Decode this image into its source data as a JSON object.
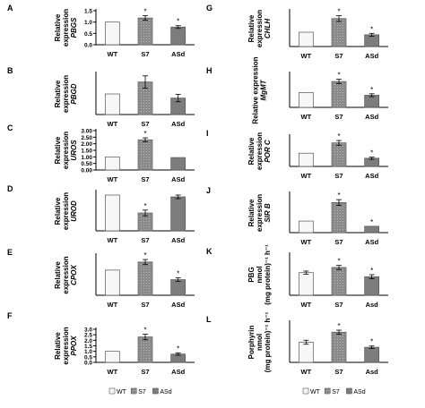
{
  "colors": {
    "WT": "#f7f7f7",
    "S7": "#8a8a8a",
    "ASd": "#7d7d7d",
    "axis": "#000000",
    "text": "#000000"
  },
  "legend_left": {
    "items": [
      "WT",
      "S7",
      "ASd"
    ]
  },
  "legend_right": {
    "items": [
      "WT",
      "S7",
      "ASd"
    ]
  },
  "chart_data": [
    {
      "type": "bar",
      "panel": "A",
      "ylabel_line1": "Relative",
      "ylabel_line2": "expression",
      "gene": "PBGS",
      "categories": [
        "WT",
        "S7",
        "ASd"
      ],
      "values": [
        1.0,
        1.18,
        0.78
      ],
      "errors": [
        0.0,
        0.1,
        0.06
      ],
      "significant": [
        false,
        true,
        true
      ],
      "ylim": [
        0,
        1.5
      ],
      "ticks": [
        "0.0",
        "0.5",
        "1.0",
        "1.5"
      ],
      "tick_values": [
        0,
        0.5,
        1.0,
        1.5
      ]
    },
    {
      "type": "bar",
      "panel": "B",
      "ylabel_line1": "Relative",
      "ylabel_line2": "expression",
      "gene": "PBGD",
      "categories": [
        "WT",
        "S7",
        "ASd"
      ],
      "values": [
        1.0,
        1.58,
        0.8
      ],
      "errors": [
        0.0,
        0.3,
        0.18
      ],
      "significant": [
        false,
        false,
        false
      ],
      "ylim": [
        0,
        2
      ],
      "ticks": [],
      "tick_values": []
    },
    {
      "type": "bar",
      "panel": "C",
      "ylabel_line1": "Relative",
      "ylabel_line2": "expression",
      "gene": "UROS",
      "categories": [
        "WT",
        "S7",
        "ASd"
      ],
      "values": [
        1.0,
        2.3,
        0.95
      ],
      "errors": [
        0.0,
        0.15,
        0.0
      ],
      "significant": [
        false,
        true,
        false
      ],
      "ylim": [
        0,
        3.0
      ],
      "ticks": [
        "0.00",
        "0.50",
        "1.00",
        "1.50",
        "2.00",
        "2.50",
        "3.00"
      ],
      "tick_values": [
        0,
        0.5,
        1.0,
        1.5,
        2.0,
        2.5,
        3.0
      ]
    },
    {
      "type": "bar",
      "panel": "D",
      "ylabel_line1": "Relative",
      "ylabel_line2": "expression",
      "gene": "UROD",
      "categories": [
        "WT",
        "S7",
        "ASd"
      ],
      "values": [
        1.0,
        0.5,
        0.95
      ],
      "errors": [
        0.0,
        0.08,
        0.05
      ],
      "significant": [
        false,
        true,
        false
      ],
      "ylim": [
        0,
        1.1
      ],
      "ticks": [],
      "tick_values": []
    },
    {
      "type": "bar",
      "panel": "E",
      "ylabel_line1": "Relative",
      "ylabel_line2": "expression",
      "gene": "CPOX",
      "categories": [
        "WT",
        "S7",
        "ASd"
      ],
      "values": [
        1.0,
        1.32,
        0.62
      ],
      "errors": [
        0.0,
        0.1,
        0.07
      ],
      "significant": [
        false,
        true,
        true
      ],
      "ylim": [
        0,
        1.6
      ],
      "ticks": [],
      "tick_values": []
    },
    {
      "type": "bar",
      "panel": "F",
      "ylabel_line1": "Relative",
      "ylabel_line2": "expression",
      "gene": "PPOX",
      "categories": [
        "WT",
        "S7",
        "ASd"
      ],
      "values": [
        1.0,
        2.3,
        0.75
      ],
      "errors": [
        0.0,
        0.25,
        0.1
      ],
      "significant": [
        false,
        true,
        true
      ],
      "ylim": [
        0,
        3.0
      ],
      "ticks": [
        "0.0",
        "0.5",
        "1.0",
        "1.5",
        "2.0",
        "2.5",
        "3.0"
      ],
      "tick_values": [
        0,
        0.5,
        1.0,
        1.5,
        2.0,
        2.5,
        3.0
      ]
    },
    {
      "type": "bar",
      "panel": "G",
      "ylabel_line1": "Relative",
      "ylabel_line2": "expression",
      "gene": "CHLH",
      "categories": [
        "WT",
        "S7",
        "ASd"
      ],
      "values": [
        1.0,
        1.95,
        0.82
      ],
      "errors": [
        0.0,
        0.2,
        0.1
      ],
      "significant": [
        false,
        true,
        true
      ],
      "ylim": [
        0,
        2.5
      ],
      "ticks": [],
      "tick_values": []
    },
    {
      "type": "bar",
      "panel": "H",
      "ylabel_line1": "Relative expression",
      "ylabel_line2": "",
      "gene": "MgMT",
      "categories": [
        "WT",
        "S7",
        "ASd"
      ],
      "values": [
        1.0,
        1.75,
        0.82
      ],
      "errors": [
        0.0,
        0.15,
        0.1
      ],
      "significant": [
        false,
        true,
        true
      ],
      "ylim": [
        0,
        2.3
      ],
      "ticks": [],
      "tick_values": []
    },
    {
      "type": "bar",
      "panel": "I",
      "ylabel_line1": "Relative",
      "ylabel_line2": "expression",
      "gene": "POR C",
      "categories": [
        "WT",
        "S7",
        "ASd"
      ],
      "values": [
        1.0,
        1.78,
        0.62
      ],
      "errors": [
        0.0,
        0.18,
        0.08
      ],
      "significant": [
        false,
        true,
        true
      ],
      "ylim": [
        0,
        2.3
      ],
      "ticks": [],
      "tick_values": []
    },
    {
      "type": "bar",
      "panel": "J",
      "ylabel_line1": "Relative",
      "ylabel_line2": "expression",
      "gene": "SIR B",
      "categories": [
        "WT",
        "S7",
        "ASd"
      ],
      "values": [
        1.0,
        2.6,
        0.55
      ],
      "errors": [
        0.0,
        0.25,
        0.0
      ],
      "significant": [
        false,
        true,
        true
      ],
      "ylim": [
        0,
        3.4
      ],
      "ticks": [],
      "tick_values": []
    },
    {
      "type": "bar",
      "panel": "K",
      "ylabel_line1": "PBG",
      "ylabel_line2": "nmol",
      "ylabel_line3": "(mg protein)⁻¹ h⁻¹",
      "gene": "",
      "categories": [
        "WT",
        "S7",
        "Asd"
      ],
      "values": [
        22,
        27,
        18
      ],
      "errors": [
        1.5,
        2.0,
        2.0
      ],
      "significant": [
        false,
        true,
        true
      ],
      "ylim": [
        0,
        40
      ],
      "ticks": [],
      "tick_values": []
    },
    {
      "type": "bar",
      "panel": "L",
      "ylabel_line1": "Porphyrin",
      "ylabel_line2": "nmol",
      "ylabel_line3": "(mg protein)⁻¹ h⁻¹",
      "gene": "",
      "categories": [
        "WT",
        "S7",
        "Asd"
      ],
      "values": [
        0.8,
        1.2,
        0.6
      ],
      "errors": [
        0.08,
        0.08,
        0.05
      ],
      "significant": [
        false,
        true,
        true
      ],
      "ylim": [
        0,
        1.6
      ],
      "ticks": [],
      "tick_values": []
    }
  ]
}
